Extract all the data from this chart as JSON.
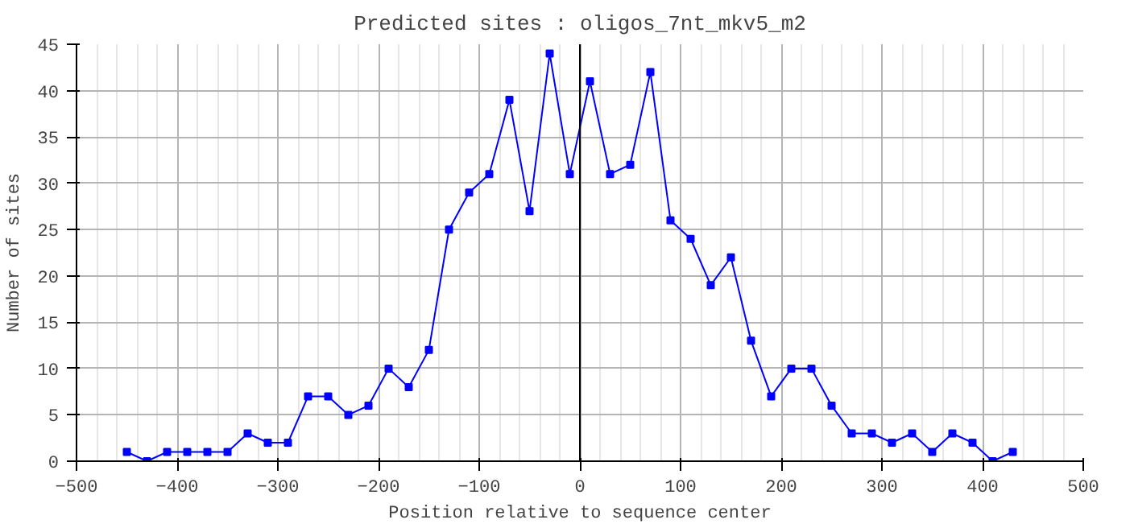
{
  "chart_data": {
    "type": "line",
    "title": "Predicted sites : oligos_7nt_mkv5_m2",
    "xlabel": "Position relative to sequence center",
    "ylabel": "Number of sites",
    "x": [
      -450,
      -430,
      -410,
      -390,
      -370,
      -350,
      -330,
      -310,
      -290,
      -270,
      -250,
      -230,
      -210,
      -190,
      -170,
      -150,
      -130,
      -110,
      -90,
      -70,
      -50,
      -30,
      -10,
      10,
      30,
      50,
      70,
      90,
      110,
      130,
      150,
      170,
      190,
      210,
      230,
      250,
      270,
      290,
      310,
      330,
      350,
      370,
      390,
      410,
      430
    ],
    "series": [
      {
        "color": "#0000ff",
        "values": [
          1,
          0,
          1,
          1,
          1,
          1,
          3,
          2,
          2,
          7,
          7,
          5,
          6,
          10,
          8,
          12,
          25,
          29,
          31,
          39,
          27,
          44,
          31,
          41,
          31,
          32,
          42,
          26,
          24,
          19,
          22,
          13,
          7,
          10,
          10,
          6,
          3,
          3,
          2,
          3,
          1,
          3,
          2,
          0,
          1
        ]
      }
    ],
    "xlim": [
      -500,
      500
    ],
    "xticks": [
      -500,
      -400,
      -300,
      -200,
      -100,
      0,
      100,
      200,
      300,
      400,
      500
    ],
    "ylim": [
      0,
      45
    ],
    "yticks": [
      0,
      5,
      10,
      15,
      20,
      25,
      30,
      35,
      40,
      45
    ],
    "ref_lines": [
      {
        "axis": "x",
        "value": 0,
        "color": "#000000"
      }
    ],
    "grid": true,
    "marker": "square",
    "line_style": "solid"
  }
}
